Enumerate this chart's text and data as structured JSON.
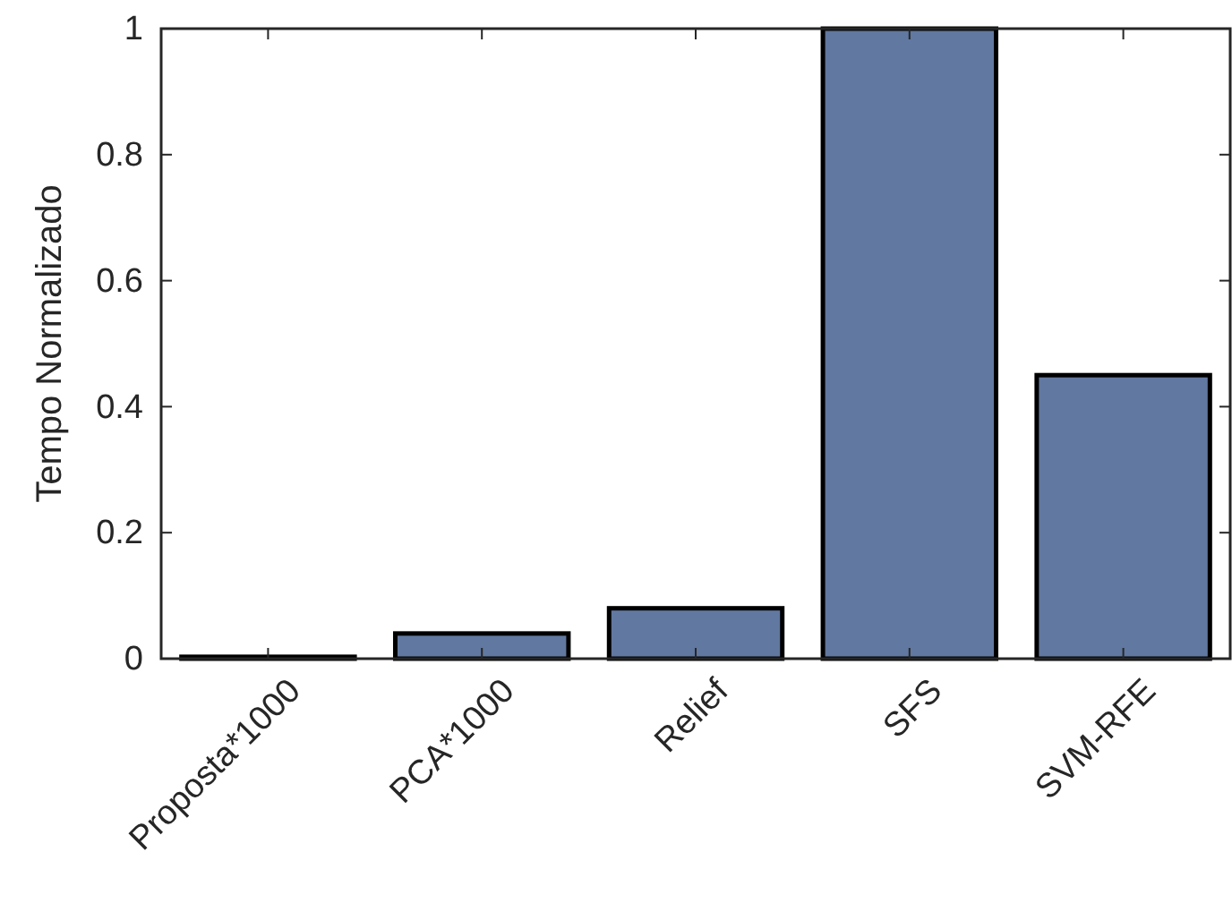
{
  "chart_data": {
    "type": "bar",
    "ylabel": "Tempo Normalizado",
    "categories": [
      "Proposta*1000",
      "PCA*1000",
      "Relief",
      "SFS",
      "SVM-RFE"
    ],
    "values": [
      0.003,
      0.04,
      0.08,
      1.0,
      0.45
    ],
    "color": "#6178a0",
    "ylim": [
      0,
      1
    ],
    "yticks": [
      0,
      0.2,
      0.4,
      0.6,
      0.8,
      1
    ],
    "grid": false
  }
}
